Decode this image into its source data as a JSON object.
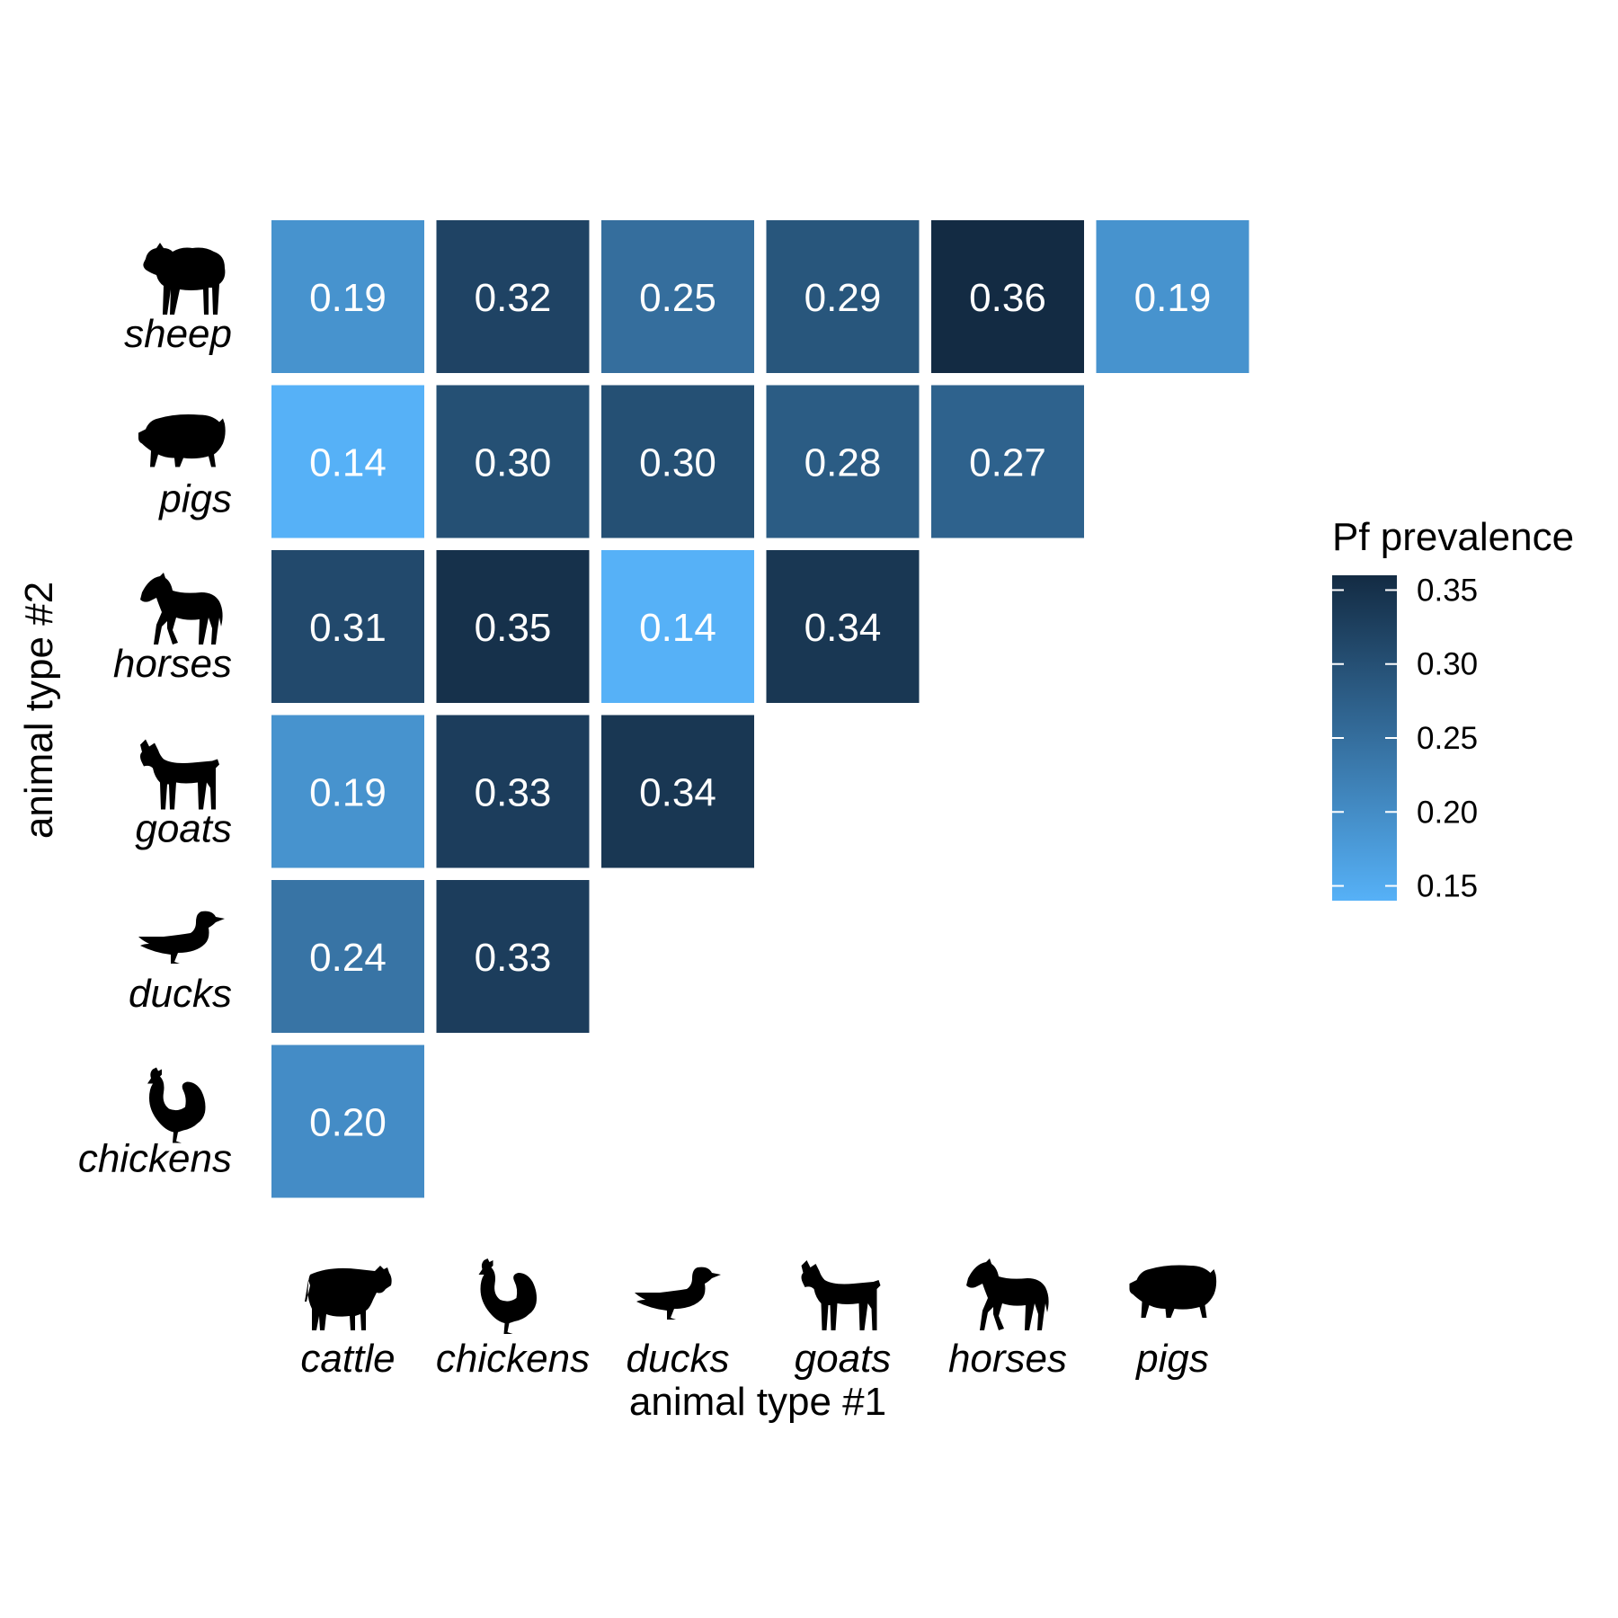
{
  "chart_data": {
    "type": "heatmap",
    "xlabel": "animal type #1",
    "ylabel": "animal type #2",
    "x_categories": [
      "cattle",
      "chickens",
      "ducks",
      "goats",
      "horses",
      "pigs"
    ],
    "y_categories": [
      "sheep",
      "pigs",
      "horses",
      "goats",
      "ducks",
      "chickens"
    ],
    "cells": [
      {
        "x": "cattle",
        "y": "sheep",
        "value": 0.19,
        "label": "0.19"
      },
      {
        "x": "chickens",
        "y": "sheep",
        "value": 0.32,
        "label": "0.32"
      },
      {
        "x": "ducks",
        "y": "sheep",
        "value": 0.25,
        "label": "0.25"
      },
      {
        "x": "goats",
        "y": "sheep",
        "value": 0.29,
        "label": "0.29"
      },
      {
        "x": "horses",
        "y": "sheep",
        "value": 0.36,
        "label": "0.36"
      },
      {
        "x": "pigs",
        "y": "sheep",
        "value": 0.19,
        "label": "0.19"
      },
      {
        "x": "cattle",
        "y": "pigs",
        "value": 0.14,
        "label": "0.14"
      },
      {
        "x": "chickens",
        "y": "pigs",
        "value": 0.3,
        "label": "0.30"
      },
      {
        "x": "ducks",
        "y": "pigs",
        "value": 0.3,
        "label": "0.30"
      },
      {
        "x": "goats",
        "y": "pigs",
        "value": 0.28,
        "label": "0.28"
      },
      {
        "x": "horses",
        "y": "pigs",
        "value": 0.27,
        "label": "0.27"
      },
      {
        "x": "cattle",
        "y": "horses",
        "value": 0.31,
        "label": "0.31"
      },
      {
        "x": "chickens",
        "y": "horses",
        "value": 0.35,
        "label": "0.35"
      },
      {
        "x": "ducks",
        "y": "horses",
        "value": 0.14,
        "label": "0.14"
      },
      {
        "x": "goats",
        "y": "horses",
        "value": 0.34,
        "label": "0.34"
      },
      {
        "x": "cattle",
        "y": "goats",
        "value": 0.19,
        "label": "0.19"
      },
      {
        "x": "chickens",
        "y": "goats",
        "value": 0.33,
        "label": "0.33"
      },
      {
        "x": "ducks",
        "y": "goats",
        "value": 0.34,
        "label": "0.34"
      },
      {
        "x": "cattle",
        "y": "ducks",
        "value": 0.24,
        "label": "0.24"
      },
      {
        "x": "chickens",
        "y": "ducks",
        "value": 0.33,
        "label": "0.33"
      },
      {
        "x": "cattle",
        "y": "chickens",
        "value": 0.2,
        "label": "0.20"
      }
    ],
    "legend": {
      "title": "Pf prevalence",
      "placement": "right",
      "ticks": [
        0.15,
        0.2,
        0.25,
        0.3,
        0.35
      ],
      "tick_labels": [
        "0.15",
        "0.20",
        "0.25",
        "0.30",
        "0.35"
      ],
      "range": [
        0.14,
        0.36
      ],
      "color_low": "#56B1F7",
      "color_high": "#132B43"
    },
    "icons": {
      "cattle": "cow-icon",
      "chickens": "rooster-icon",
      "ducks": "duck-icon",
      "goats": "goat-icon",
      "horses": "horse-icon",
      "pigs": "pig-icon",
      "sheep": "sheep-icon"
    },
    "grid": false
  }
}
